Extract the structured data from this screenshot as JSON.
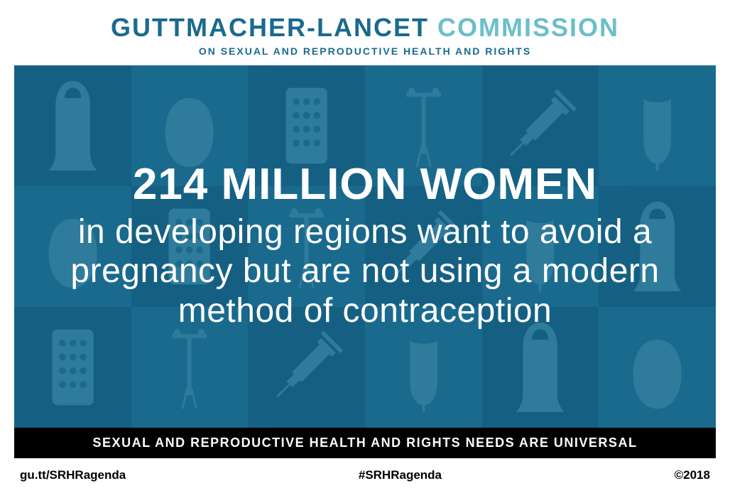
{
  "header": {
    "title_part1": "GUTTMACHER-LANCET",
    "title_part2": " COMMISSION",
    "subtitle": "ON SEXUAL AND REPRODUCTIVE HEALTH AND RIGHTS",
    "title_part1_color": "#1a6a8e",
    "title_part2_color": "#6bbfc9"
  },
  "main": {
    "headline": "214 MILLION WOMEN",
    "body": "in developing regions want to avoid a pregnancy but are not using a modern method of contraception",
    "background_color": "#1a6a8e",
    "text_color": "#ffffff",
    "headline_fontsize": 62,
    "body_fontsize": 48,
    "icon_grid": {
      "columns": 6,
      "rows": 3,
      "dark_cell_color": "#0f5575",
      "light_cell_color": "#1a6a8e",
      "icon_opacity": 0.45,
      "icon_color": "#4a90ad",
      "pattern": [
        "condom",
        "diaphragm",
        "pills",
        "iud",
        "syringe",
        "cup",
        "diaphragm",
        "pills",
        "iud",
        "syringe",
        "cup",
        "condom",
        "pills",
        "iud",
        "syringe",
        "cup",
        "condom",
        "diaphragm"
      ]
    }
  },
  "black_bar": {
    "text": "SEXUAL AND REPRODUCTIVE HEALTH AND RIGHTS NEEDS ARE UNIVERSAL",
    "background_color": "#000000",
    "text_color": "#ffffff"
  },
  "footer": {
    "url": "gu.tt/SRHRagenda",
    "hashtag": "#SRHRagenda",
    "copyright": "©2018"
  }
}
